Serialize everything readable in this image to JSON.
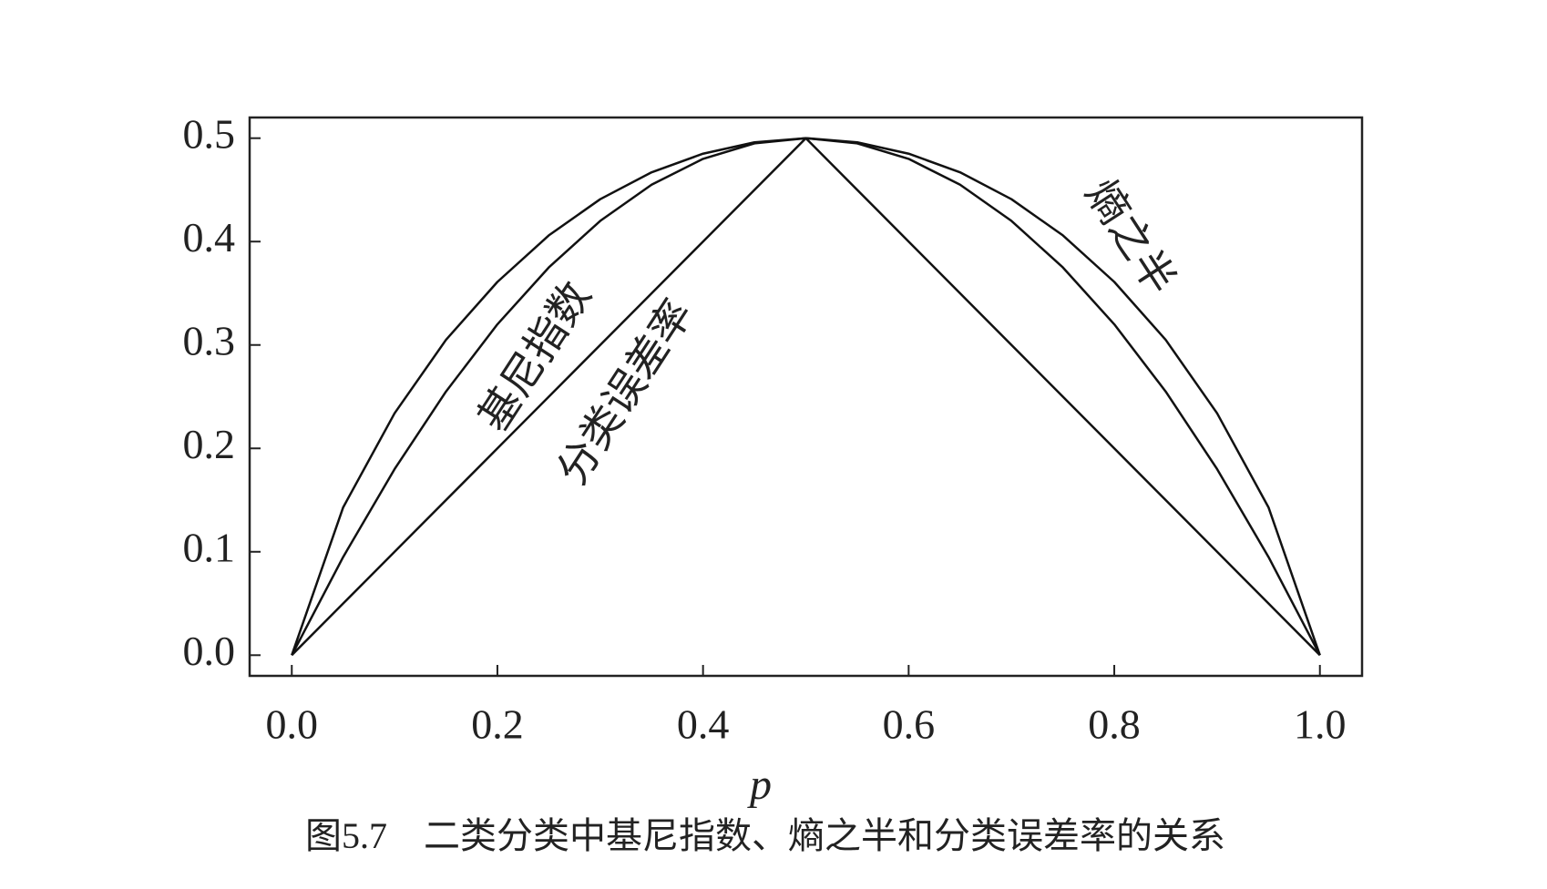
{
  "chart_data": {
    "type": "line",
    "caption": "图5.7　二类分类中基尼指数、熵之半和分类误差率的关系",
    "x_label": "p",
    "x": [
      0,
      0.05,
      0.1,
      0.15,
      0.2,
      0.25,
      0.3,
      0.35,
      0.4,
      0.45,
      0.5,
      0.55,
      0.6,
      0.65,
      0.7,
      0.75,
      0.8,
      0.85,
      0.9,
      0.95,
      1.0
    ],
    "series": [
      {
        "name": "熵之半",
        "color": "#111111",
        "values": [
          0,
          0.143,
          0.234,
          0.305,
          0.361,
          0.406,
          0.441,
          0.467,
          0.485,
          0.496,
          0.5,
          0.496,
          0.485,
          0.467,
          0.441,
          0.406,
          0.361,
          0.305,
          0.234,
          0.143,
          0
        ]
      },
      {
        "name": "基尼指数",
        "color": "#111111",
        "values": [
          0,
          0.095,
          0.18,
          0.255,
          0.32,
          0.375,
          0.42,
          0.455,
          0.48,
          0.495,
          0.5,
          0.495,
          0.48,
          0.455,
          0.42,
          0.375,
          0.32,
          0.255,
          0.18,
          0.095,
          0
        ]
      },
      {
        "name": "分类误差率",
        "color": "#111111",
        "values": [
          0,
          0.05,
          0.1,
          0.15,
          0.2,
          0.25,
          0.3,
          0.35,
          0.4,
          0.45,
          0.5,
          0.45,
          0.4,
          0.35,
          0.3,
          0.25,
          0.2,
          0.15,
          0.1,
          0.05,
          0
        ]
      }
    ],
    "xlim": [
      -0.041,
      1.041
    ],
    "ylim": [
      -0.02,
      0.52
    ],
    "xticks": [
      {
        "value": 0,
        "label": "0.0"
      },
      0.2,
      0.4,
      0.6,
      0.8,
      {
        "value": 1,
        "label": "1.0"
      }
    ],
    "yticks": [
      {
        "value": 0,
        "label": "0.0"
      },
      0.1,
      0.2,
      0.3,
      0.4,
      0.5
    ],
    "grid": false
  }
}
